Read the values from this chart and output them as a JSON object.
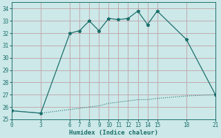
{
  "xlabel": "Humidex (Indice chaleur)",
  "bg_color": "#cce8e8",
  "grid_color": "#c0a0a8",
  "line_color": "#1a6e6a",
  "ylim": [
    25,
    34.5
  ],
  "xlim": [
    0,
    21
  ],
  "yticks": [
    25,
    26,
    27,
    28,
    29,
    30,
    31,
    32,
    33,
    34
  ],
  "xticks": [
    0,
    3,
    6,
    7,
    8,
    9,
    10,
    11,
    12,
    13,
    14,
    15,
    18,
    21
  ],
  "curve1_x": [
    0,
    3,
    6,
    7,
    8,
    9,
    10,
    11,
    12,
    13,
    14,
    15,
    18,
    21
  ],
  "curve1_y": [
    25.7,
    25.5,
    32.0,
    32.2,
    33.0,
    32.2,
    33.2,
    33.1,
    33.2,
    33.8,
    32.7,
    33.8,
    31.5,
    27.0
  ],
  "curve2_x": [
    0,
    3,
    6,
    7,
    8,
    9,
    10,
    11,
    12,
    13,
    14,
    15,
    18,
    21
  ],
  "curve2_y": [
    25.7,
    25.5,
    25.8,
    25.9,
    26.0,
    26.1,
    26.3,
    26.4,
    26.5,
    26.6,
    26.6,
    26.7,
    26.9,
    27.0
  ],
  "tick_fontsize": 5.5,
  "xlabel_fontsize": 6.5
}
